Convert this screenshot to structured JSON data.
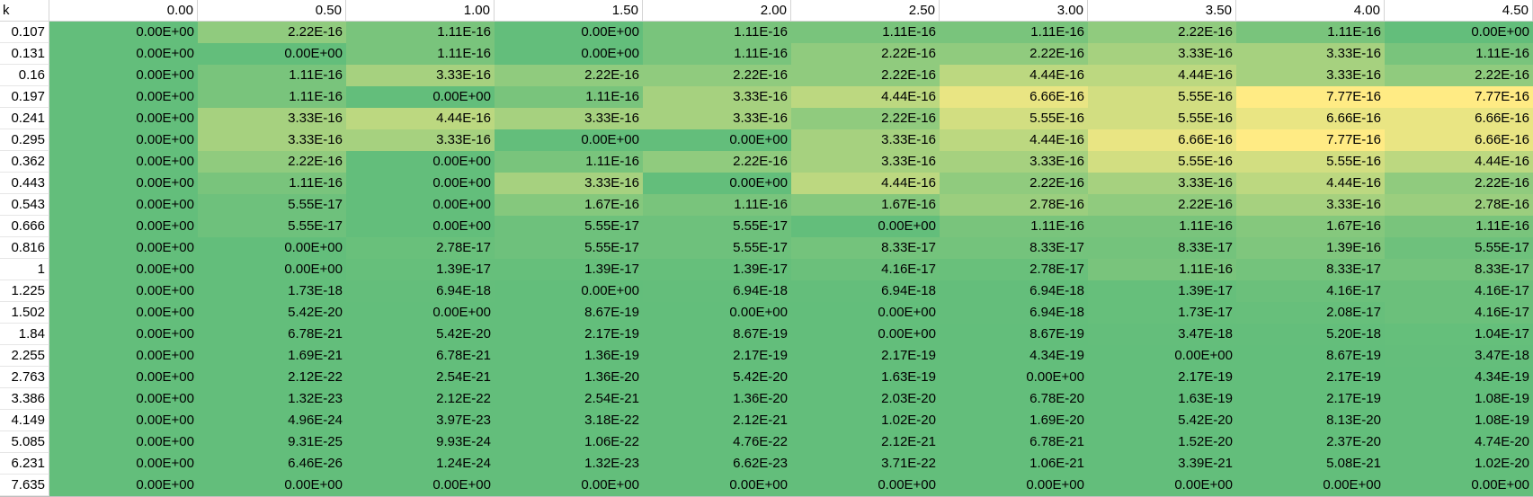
{
  "chart_data": {
    "type": "heatmap",
    "corner_label": "k",
    "columns": [
      "0.00",
      "0.50",
      "1.00",
      "1.50",
      "2.00",
      "2.50",
      "3.00",
      "3.50",
      "4.00",
      "4.50"
    ],
    "rows": [
      "0.107",
      "0.131",
      "0.16",
      "0.197",
      "0.241",
      "0.295",
      "0.362",
      "0.443",
      "0.543",
      "0.666",
      "0.816",
      "1",
      "1.225",
      "1.502",
      "1.84",
      "2.255",
      "2.763",
      "3.386",
      "4.149",
      "5.085",
      "6.231",
      "7.635"
    ],
    "values": [
      [
        "0.00E+00",
        "2.22E-16",
        "1.11E-16",
        "0.00E+00",
        "1.11E-16",
        "1.11E-16",
        "1.11E-16",
        "2.22E-16",
        "1.11E-16",
        "0.00E+00"
      ],
      [
        "0.00E+00",
        "0.00E+00",
        "1.11E-16",
        "0.00E+00",
        "1.11E-16",
        "2.22E-16",
        "2.22E-16",
        "3.33E-16",
        "3.33E-16",
        "1.11E-16"
      ],
      [
        "0.00E+00",
        "1.11E-16",
        "3.33E-16",
        "2.22E-16",
        "2.22E-16",
        "2.22E-16",
        "4.44E-16",
        "4.44E-16",
        "3.33E-16",
        "2.22E-16"
      ],
      [
        "0.00E+00",
        "1.11E-16",
        "0.00E+00",
        "1.11E-16",
        "3.33E-16",
        "4.44E-16",
        "6.66E-16",
        "5.55E-16",
        "7.77E-16",
        "7.77E-16"
      ],
      [
        "0.00E+00",
        "3.33E-16",
        "4.44E-16",
        "3.33E-16",
        "3.33E-16",
        "2.22E-16",
        "5.55E-16",
        "5.55E-16",
        "6.66E-16",
        "6.66E-16"
      ],
      [
        "0.00E+00",
        "3.33E-16",
        "3.33E-16",
        "0.00E+00",
        "0.00E+00",
        "3.33E-16",
        "4.44E-16",
        "6.66E-16",
        "7.77E-16",
        "6.66E-16"
      ],
      [
        "0.00E+00",
        "2.22E-16",
        "0.00E+00",
        "1.11E-16",
        "2.22E-16",
        "3.33E-16",
        "3.33E-16",
        "5.55E-16",
        "5.55E-16",
        "4.44E-16"
      ],
      [
        "0.00E+00",
        "1.11E-16",
        "0.00E+00",
        "3.33E-16",
        "0.00E+00",
        "4.44E-16",
        "2.22E-16",
        "3.33E-16",
        "4.44E-16",
        "2.22E-16"
      ],
      [
        "0.00E+00",
        "5.55E-17",
        "0.00E+00",
        "1.67E-16",
        "1.11E-16",
        "1.67E-16",
        "2.78E-16",
        "2.22E-16",
        "3.33E-16",
        "2.78E-16"
      ],
      [
        "0.00E+00",
        "5.55E-17",
        "0.00E+00",
        "5.55E-17",
        "5.55E-17",
        "0.00E+00",
        "1.11E-16",
        "1.11E-16",
        "1.67E-16",
        "1.11E-16"
      ],
      [
        "0.00E+00",
        "0.00E+00",
        "2.78E-17",
        "5.55E-17",
        "5.55E-17",
        "8.33E-17",
        "8.33E-17",
        "8.33E-17",
        "1.39E-16",
        "5.55E-17"
      ],
      [
        "0.00E+00",
        "0.00E+00",
        "1.39E-17",
        "1.39E-17",
        "1.39E-17",
        "4.16E-17",
        "2.78E-17",
        "1.11E-16",
        "8.33E-17",
        "8.33E-17"
      ],
      [
        "0.00E+00",
        "1.73E-18",
        "6.94E-18",
        "0.00E+00",
        "6.94E-18",
        "6.94E-18",
        "6.94E-18",
        "1.39E-17",
        "4.16E-17",
        "4.16E-17"
      ],
      [
        "0.00E+00",
        "5.42E-20",
        "0.00E+00",
        "8.67E-19",
        "0.00E+00",
        "0.00E+00",
        "6.94E-18",
        "1.73E-17",
        "2.08E-17",
        "4.16E-17"
      ],
      [
        "0.00E+00",
        "6.78E-21",
        "5.42E-20",
        "2.17E-19",
        "8.67E-19",
        "0.00E+00",
        "8.67E-19",
        "3.47E-18",
        "5.20E-18",
        "1.04E-17"
      ],
      [
        "0.00E+00",
        "1.69E-21",
        "6.78E-21",
        "1.36E-19",
        "2.17E-19",
        "2.17E-19",
        "4.34E-19",
        "0.00E+00",
        "8.67E-19",
        "3.47E-18"
      ],
      [
        "0.00E+00",
        "2.12E-22",
        "2.54E-21",
        "1.36E-20",
        "5.42E-20",
        "1.63E-19",
        "0.00E+00",
        "2.17E-19",
        "2.17E-19",
        "4.34E-19"
      ],
      [
        "0.00E+00",
        "1.32E-23",
        "2.12E-22",
        "2.54E-21",
        "1.36E-20",
        "2.03E-20",
        "6.78E-20",
        "1.63E-19",
        "2.17E-19",
        "1.08E-19"
      ],
      [
        "0.00E+00",
        "4.96E-24",
        "3.97E-23",
        "3.18E-22",
        "2.12E-21",
        "1.02E-20",
        "1.69E-20",
        "5.42E-20",
        "8.13E-20",
        "1.08E-19"
      ],
      [
        "0.00E+00",
        "9.31E-25",
        "9.93E-24",
        "1.06E-22",
        "4.76E-22",
        "2.12E-21",
        "6.78E-21",
        "1.52E-20",
        "2.37E-20",
        "4.74E-20"
      ],
      [
        "0.00E+00",
        "6.46E-26",
        "1.24E-24",
        "1.32E-23",
        "6.62E-23",
        "3.71E-22",
        "1.06E-21",
        "3.39E-21",
        "5.08E-21",
        "1.02E-20"
      ],
      [
        "0.00E+00",
        "0.00E+00",
        "0.00E+00",
        "0.00E+00",
        "0.00E+00",
        "0.00E+00",
        "0.00E+00",
        "0.00E+00",
        "0.00E+00",
        "0.00E+00"
      ]
    ],
    "color_scale": {
      "low": "#63be7b",
      "high": "#ffeb84"
    }
  }
}
